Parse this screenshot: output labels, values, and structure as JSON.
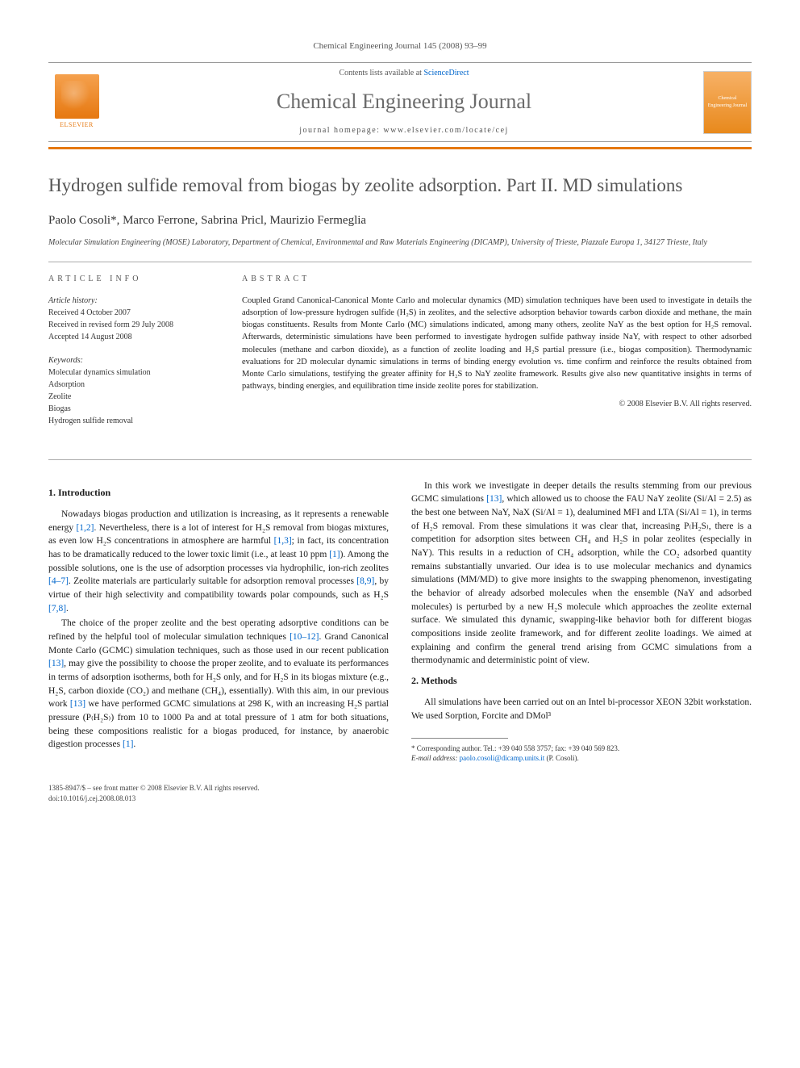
{
  "header": {
    "citation": "Chemical Engineering Journal 145 (2008) 93–99",
    "contents_prefix": "Contents lists available at ",
    "contents_link": "ScienceDirect",
    "journal_name": "Chemical Engineering Journal",
    "homepage_prefix": "journal homepage: ",
    "homepage_url": "www.elsevier.com/locate/cej",
    "publisher_name": "ELSEVIER",
    "cover_text": "Chemical Engineering Journal"
  },
  "title": "Hydrogen sulfide removal from biogas by zeolite adsorption. Part II. MD simulations",
  "authors": "Paolo Cosoli*, Marco Ferrone, Sabrina Pricl, Maurizio Fermeglia",
  "affiliation": "Molecular Simulation Engineering (MOSE) Laboratory, Department of Chemical, Environmental and Raw Materials Engineering (DICAMP), University of Trieste, Piazzale Europa 1, 34127 Trieste, Italy",
  "article_info": {
    "heading": "ARTICLE INFO",
    "history_label": "Article history:",
    "history": [
      "Received 4 October 2007",
      "Received in revised form 29 July 2008",
      "Accepted 14 August 2008"
    ],
    "keywords_label": "Keywords:",
    "keywords": [
      "Molecular dynamics simulation",
      "Adsorption",
      "Zeolite",
      "Biogas",
      "Hydrogen sulfide removal"
    ]
  },
  "abstract": {
    "heading": "ABSTRACT",
    "text": "Coupled Grand Canonical-Canonical Monte Carlo and molecular dynamics (MD) simulation techniques have been used to investigate in details the adsorption of low-pressure hydrogen sulfide (H₂S) in zeolites, and the selective adsorption behavior towards carbon dioxide and methane, the main biogas constituents. Results from Monte Carlo (MC) simulations indicated, among many others, zeolite NaY as the best option for H₂S removal. Afterwards, deterministic simulations have been performed to investigate hydrogen sulfide pathway inside NaY, with respect to other adsorbed molecules (methane and carbon dioxide), as a function of zeolite loading and H₂S partial pressure (i.e., biogas composition). Thermodynamic evaluations for 2D molecular dynamic simulations in terms of binding energy evolution vs. time confirm and reinforce the results obtained from Monte Carlo simulations, testifying the greater affinity for H₂S to NaY zeolite framework. Results give also new quantitative insights in terms of pathways, binding energies, and equilibration time inside zeolite pores for stabilization.",
    "copyright": "© 2008 Elsevier B.V. All rights reserved."
  },
  "sections": {
    "intro_heading": "1. Introduction",
    "methods_heading": "2. Methods"
  },
  "body": {
    "p1a": "Nowadays biogas production and utilization is increasing, as it represents a renewable energy ",
    "p1b": ". Nevertheless, there is a lot of interest for H₂S removal from biogas mixtures, as even low H₂S concentrations in atmosphere are harmful ",
    "p1c": "; in fact, its concentration has to be dramatically reduced to the lower toxic limit (i.e., at least 10 ppm ",
    "p1d": "). Among the possible solutions, one is the use of adsorption processes via hydrophilic, ion-rich zeolites ",
    "p1e": ". Zeolite materials are particularly suitable for adsorption removal processes ",
    "p1f": ", by virtue of their high selectivity and compatibility towards polar compounds, such as H₂S ",
    "p1g": ".",
    "p2a": "The choice of the proper zeolite and the best operating adsorptive conditions can be refined by the helpful tool of molecular simulation techniques ",
    "p2b": ". Grand Canonical Monte Carlo (GCMC) simulation techniques, such as those used in our recent publication ",
    "p2c": ", may give the possibility to choose the proper zeolite, and to evaluate its performances in terms of adsorption isotherms, both for H₂S only, and for H₂S in its biogas mixture (e.g., H₂S, carbon dioxide (CO₂) and methane (CH₄), essentially). With this aim, in our previous work ",
    "p2d": " we have performed GCMC simulations at 298 K, with an increasing H₂S partial pressure (P₍H₂S₎) ",
    "p2e": "from 10 to 1000 Pa and at total pressure of 1 atm for both situations, being these compositions realistic for a biogas produced, for instance, by anaerobic digestion processes ",
    "p2f": ".",
    "p3a": "In this work we investigate in deeper details the results stemming from our previous GCMC simulations ",
    "p3b": ", which allowed us to choose the FAU NaY zeolite (Si/Al = 2.5) as the best one between NaY, NaX (Si/Al = 1), dealumined MFI and LTA (Si/Al = 1), in terms of H₂S removal. From these simulations it was clear that, increasing P₍H₂S₎, there is a competition for adsorption sites between CH₄ and H₂S in polar zeolites (especially in NaY). This results in a reduction of CH₄ adsorption, while the CO₂ adsorbed quantity remains substantially unvaried. Our idea is to use molecular mechanics and dynamics simulations (MM/MD) to give more insights to the swapping phenomenon, investigating the behavior of already adsorbed molecules when the ensemble (NaY and adsorbed molecules) is perturbed by a new H₂S molecule which approaches the zeolite external surface. We simulated this dynamic, swapping-like behavior both for different biogas compositions inside zeolite framework, and for different zeolite loadings. We aimed at explaining and confirm the general trend arising from GCMC simulations from a thermodynamic and deterministic point of view.",
    "p4": "All simulations have been carried out on an Intel bi-processor XEON 32bit workstation. We used Sorption, Forcite and DMol³"
  },
  "refs": {
    "r12": "[1,2]",
    "r13": "[1,3]",
    "r1": "[1]",
    "r47": "[4–7]",
    "r89": "[8,9]",
    "r78": "[7,8]",
    "r1012": "[10–12]",
    "r13s": "[13]"
  },
  "footnote": {
    "corr": "* Corresponding author. Tel.: +39 040 558 3757; fax: +39 040 569 823.",
    "email_label": "E-mail address: ",
    "email": "paolo.cosoli@dicamp.units.it",
    "email_suffix": " (P. Cosoli)."
  },
  "footer": {
    "line1": "1385-8947/$ – see front matter © 2008 Elsevier B.V. All rights reserved.",
    "line2": "doi:10.1016/j.cej.2008.08.013"
  },
  "colors": {
    "accent": "#e67810",
    "link": "#0066cc",
    "title": "#555555",
    "text": "#1a1a1a"
  }
}
